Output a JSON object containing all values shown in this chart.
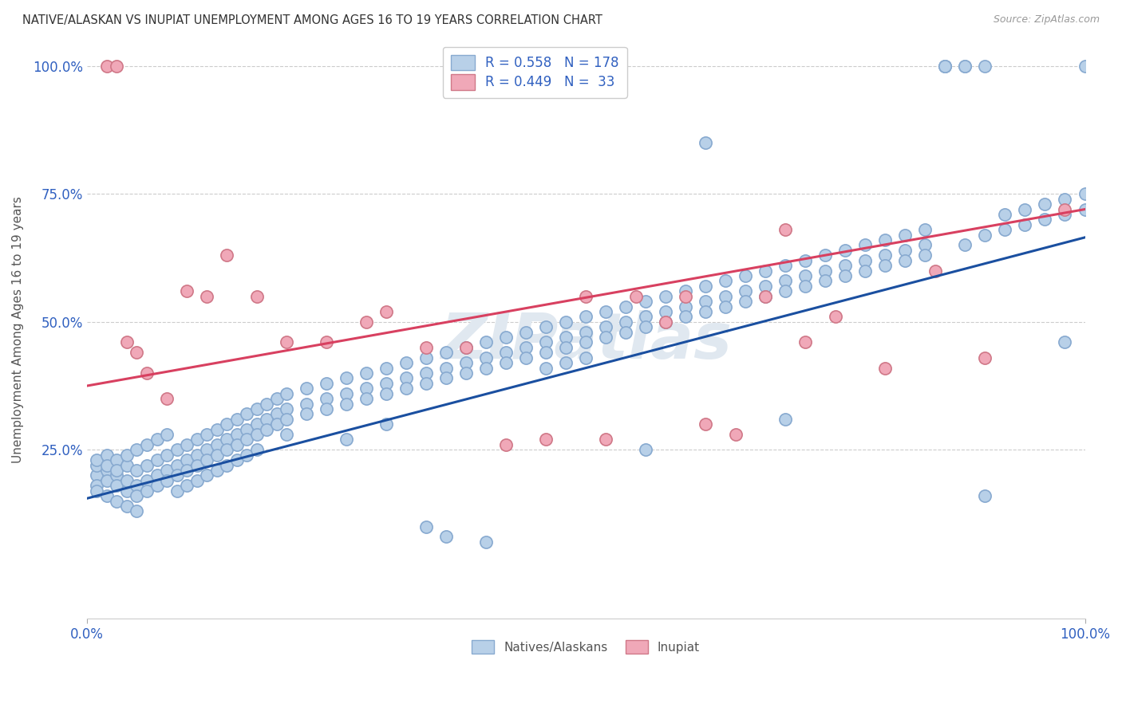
{
  "title": "NATIVE/ALASKAN VS INUPIAT UNEMPLOYMENT AMONG AGES 16 TO 19 YEARS CORRELATION CHART",
  "source": "Source: ZipAtlas.com",
  "ylabel": "Unemployment Among Ages 16 to 19 years",
  "watermark": "ZIPatlas",
  "blue_R": 0.558,
  "blue_N": 178,
  "pink_R": 0.449,
  "pink_N": 33,
  "blue_color": "#b8d0e8",
  "pink_color": "#f0a8b8",
  "blue_edge_color": "#88aad0",
  "pink_edge_color": "#d07888",
  "blue_line_color": "#1a4fa0",
  "pink_line_color": "#d84060",
  "legend_text_color": "#3060c0",
  "background_color": "#ffffff",
  "grid_color": "#cccccc",
  "axis_label_color": "#3060c0",
  "xlim": [
    0.0,
    1.0
  ],
  "ylim": [
    -0.08,
    1.05
  ],
  "xtick_positions": [
    0.0,
    1.0
  ],
  "xtick_labels": [
    "0.0%",
    "100.0%"
  ],
  "ytick_positions": [
    0.25,
    0.5,
    0.75,
    1.0
  ],
  "ytick_labels": [
    "25.0%",
    "50.0%",
    "75.0%",
    "100.0%"
  ],
  "blue_line_x": [
    0.0,
    1.0
  ],
  "blue_line_y": [
    0.155,
    0.665
  ],
  "pink_line_x": [
    0.0,
    1.0
  ],
  "pink_line_y": [
    0.375,
    0.72
  ],
  "blue_scatter": [
    [
      0.01,
      0.2
    ],
    [
      0.01,
      0.22
    ],
    [
      0.01,
      0.18
    ],
    [
      0.01,
      0.23
    ],
    [
      0.01,
      0.17
    ],
    [
      0.02,
      0.21
    ],
    [
      0.02,
      0.19
    ],
    [
      0.02,
      0.24
    ],
    [
      0.02,
      0.16
    ],
    [
      0.02,
      0.22
    ],
    [
      0.03,
      0.2
    ],
    [
      0.03,
      0.18
    ],
    [
      0.03,
      0.23
    ],
    [
      0.03,
      0.15
    ],
    [
      0.03,
      0.21
    ],
    [
      0.04,
      0.22
    ],
    [
      0.04,
      0.17
    ],
    [
      0.04,
      0.24
    ],
    [
      0.04,
      0.19
    ],
    [
      0.04,
      0.14
    ],
    [
      0.05,
      0.21
    ],
    [
      0.05,
      0.18
    ],
    [
      0.05,
      0.25
    ],
    [
      0.05,
      0.16
    ],
    [
      0.05,
      0.13
    ],
    [
      0.06,
      0.22
    ],
    [
      0.06,
      0.19
    ],
    [
      0.06,
      0.26
    ],
    [
      0.06,
      0.17
    ],
    [
      0.07,
      0.23
    ],
    [
      0.07,
      0.2
    ],
    [
      0.07,
      0.27
    ],
    [
      0.07,
      0.18
    ],
    [
      0.08,
      0.24
    ],
    [
      0.08,
      0.21
    ],
    [
      0.08,
      0.28
    ],
    [
      0.08,
      0.19
    ],
    [
      0.09,
      0.22
    ],
    [
      0.09,
      0.25
    ],
    [
      0.09,
      0.2
    ],
    [
      0.09,
      0.17
    ],
    [
      0.1,
      0.23
    ],
    [
      0.1,
      0.26
    ],
    [
      0.1,
      0.21
    ],
    [
      0.1,
      0.18
    ],
    [
      0.11,
      0.24
    ],
    [
      0.11,
      0.27
    ],
    [
      0.11,
      0.22
    ],
    [
      0.11,
      0.19
    ],
    [
      0.12,
      0.25
    ],
    [
      0.12,
      0.28
    ],
    [
      0.12,
      0.23
    ],
    [
      0.12,
      0.2
    ],
    [
      0.13,
      0.26
    ],
    [
      0.13,
      0.29
    ],
    [
      0.13,
      0.24
    ],
    [
      0.13,
      0.21
    ],
    [
      0.14,
      0.27
    ],
    [
      0.14,
      0.3
    ],
    [
      0.14,
      0.25
    ],
    [
      0.14,
      0.22
    ],
    [
      0.15,
      0.28
    ],
    [
      0.15,
      0.31
    ],
    [
      0.15,
      0.26
    ],
    [
      0.15,
      0.23
    ],
    [
      0.16,
      0.29
    ],
    [
      0.16,
      0.32
    ],
    [
      0.16,
      0.27
    ],
    [
      0.16,
      0.24
    ],
    [
      0.17,
      0.3
    ],
    [
      0.17,
      0.33
    ],
    [
      0.17,
      0.28
    ],
    [
      0.17,
      0.25
    ],
    [
      0.18,
      0.31
    ],
    [
      0.18,
      0.34
    ],
    [
      0.18,
      0.29
    ],
    [
      0.19,
      0.32
    ],
    [
      0.19,
      0.35
    ],
    [
      0.19,
      0.3
    ],
    [
      0.2,
      0.33
    ],
    [
      0.2,
      0.36
    ],
    [
      0.2,
      0.31
    ],
    [
      0.2,
      0.28
    ],
    [
      0.22,
      0.34
    ],
    [
      0.22,
      0.37
    ],
    [
      0.22,
      0.32
    ],
    [
      0.24,
      0.35
    ],
    [
      0.24,
      0.38
    ],
    [
      0.24,
      0.33
    ],
    [
      0.26,
      0.36
    ],
    [
      0.26,
      0.39
    ],
    [
      0.26,
      0.34
    ],
    [
      0.26,
      0.27
    ],
    [
      0.28,
      0.37
    ],
    [
      0.28,
      0.4
    ],
    [
      0.28,
      0.35
    ],
    [
      0.3,
      0.38
    ],
    [
      0.3,
      0.41
    ],
    [
      0.3,
      0.36
    ],
    [
      0.3,
      0.3
    ],
    [
      0.32,
      0.39
    ],
    [
      0.32,
      0.42
    ],
    [
      0.32,
      0.37
    ],
    [
      0.34,
      0.4
    ],
    [
      0.34,
      0.43
    ],
    [
      0.34,
      0.38
    ],
    [
      0.34,
      0.1
    ],
    [
      0.36,
      0.41
    ],
    [
      0.36,
      0.44
    ],
    [
      0.36,
      0.39
    ],
    [
      0.36,
      0.08
    ],
    [
      0.38,
      0.42
    ],
    [
      0.38,
      0.45
    ],
    [
      0.38,
      0.4
    ],
    [
      0.4,
      0.43
    ],
    [
      0.4,
      0.46
    ],
    [
      0.4,
      0.41
    ],
    [
      0.4,
      0.07
    ],
    [
      0.42,
      0.44
    ],
    [
      0.42,
      0.47
    ],
    [
      0.42,
      0.42
    ],
    [
      0.44,
      0.45
    ],
    [
      0.44,
      0.48
    ],
    [
      0.44,
      0.43
    ],
    [
      0.46,
      0.46
    ],
    [
      0.46,
      0.49
    ],
    [
      0.46,
      0.44
    ],
    [
      0.46,
      0.41
    ],
    [
      0.48,
      0.47
    ],
    [
      0.48,
      0.5
    ],
    [
      0.48,
      0.45
    ],
    [
      0.48,
      0.42
    ],
    [
      0.5,
      0.48
    ],
    [
      0.5,
      0.51
    ],
    [
      0.5,
      0.46
    ],
    [
      0.5,
      0.43
    ],
    [
      0.52,
      0.49
    ],
    [
      0.52,
      0.52
    ],
    [
      0.52,
      0.47
    ],
    [
      0.54,
      0.5
    ],
    [
      0.54,
      0.53
    ],
    [
      0.54,
      0.48
    ],
    [
      0.56,
      0.51
    ],
    [
      0.56,
      0.54
    ],
    [
      0.56,
      0.49
    ],
    [
      0.56,
      0.25
    ],
    [
      0.58,
      0.52
    ],
    [
      0.58,
      0.55
    ],
    [
      0.58,
      0.5
    ],
    [
      0.6,
      0.53
    ],
    [
      0.6,
      0.56
    ],
    [
      0.6,
      0.51
    ],
    [
      0.62,
      0.54
    ],
    [
      0.62,
      0.57
    ],
    [
      0.62,
      0.52
    ],
    [
      0.62,
      0.85
    ],
    [
      0.64,
      0.55
    ],
    [
      0.64,
      0.58
    ],
    [
      0.64,
      0.53
    ],
    [
      0.66,
      0.56
    ],
    [
      0.66,
      0.59
    ],
    [
      0.66,
      0.54
    ],
    [
      0.68,
      0.57
    ],
    [
      0.68,
      0.6
    ],
    [
      0.68,
      0.55
    ],
    [
      0.7,
      0.58
    ],
    [
      0.7,
      0.61
    ],
    [
      0.7,
      0.56
    ],
    [
      0.7,
      0.31
    ],
    [
      0.72,
      0.59
    ],
    [
      0.72,
      0.62
    ],
    [
      0.72,
      0.57
    ],
    [
      0.74,
      0.6
    ],
    [
      0.74,
      0.63
    ],
    [
      0.74,
      0.58
    ],
    [
      0.76,
      0.61
    ],
    [
      0.76,
      0.64
    ],
    [
      0.76,
      0.59
    ],
    [
      0.78,
      0.62
    ],
    [
      0.78,
      0.65
    ],
    [
      0.78,
      0.6
    ],
    [
      0.8,
      0.63
    ],
    [
      0.8,
      0.66
    ],
    [
      0.8,
      0.61
    ],
    [
      0.82,
      0.64
    ],
    [
      0.82,
      0.67
    ],
    [
      0.82,
      0.62
    ],
    [
      0.84,
      0.65
    ],
    [
      0.84,
      0.68
    ],
    [
      0.84,
      0.63
    ],
    [
      0.86,
      1.0
    ],
    [
      0.86,
      1.0
    ],
    [
      0.86,
      1.0
    ],
    [
      0.88,
      1.0
    ],
    [
      0.88,
      1.0
    ],
    [
      0.88,
      0.65
    ],
    [
      0.9,
      1.0
    ],
    [
      0.9,
      0.67
    ],
    [
      0.9,
      0.16
    ],
    [
      0.92,
      0.68
    ],
    [
      0.92,
      0.71
    ],
    [
      0.94,
      0.69
    ],
    [
      0.94,
      0.72
    ],
    [
      0.96,
      0.7
    ],
    [
      0.96,
      0.73
    ],
    [
      0.98,
      0.71
    ],
    [
      0.98,
      0.74
    ],
    [
      0.98,
      0.46
    ],
    [
      1.0,
      0.72
    ],
    [
      1.0,
      0.75
    ],
    [
      1.0,
      1.0
    ]
  ],
  "pink_scatter": [
    [
      0.02,
      1.0
    ],
    [
      0.03,
      1.0
    ],
    [
      0.04,
      0.46
    ],
    [
      0.05,
      0.44
    ],
    [
      0.06,
      0.4
    ],
    [
      0.08,
      0.35
    ],
    [
      0.1,
      0.56
    ],
    [
      0.12,
      0.55
    ],
    [
      0.14,
      0.63
    ],
    [
      0.17,
      0.55
    ],
    [
      0.2,
      0.46
    ],
    [
      0.24,
      0.46
    ],
    [
      0.28,
      0.5
    ],
    [
      0.3,
      0.52
    ],
    [
      0.34,
      0.45
    ],
    [
      0.38,
      0.45
    ],
    [
      0.42,
      0.26
    ],
    [
      0.46,
      0.27
    ],
    [
      0.5,
      0.55
    ],
    [
      0.52,
      0.27
    ],
    [
      0.55,
      0.55
    ],
    [
      0.58,
      0.5
    ],
    [
      0.6,
      0.55
    ],
    [
      0.62,
      0.3
    ],
    [
      0.65,
      0.28
    ],
    [
      0.68,
      0.55
    ],
    [
      0.7,
      0.68
    ],
    [
      0.72,
      0.46
    ],
    [
      0.75,
      0.51
    ],
    [
      0.8,
      0.41
    ],
    [
      0.85,
      0.6
    ],
    [
      0.9,
      0.43
    ],
    [
      0.98,
      0.72
    ]
  ]
}
